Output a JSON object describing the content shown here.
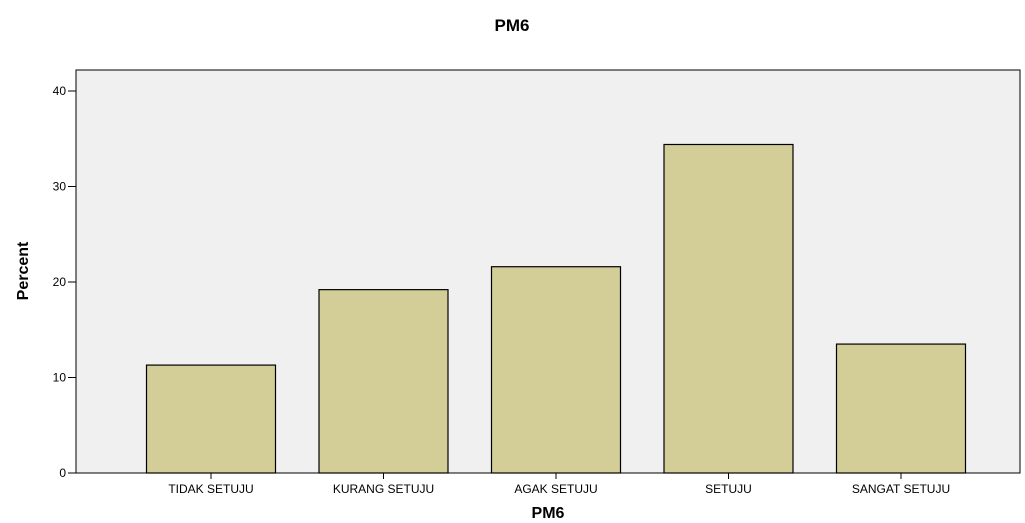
{
  "chart_data": {
    "type": "bar",
    "title": "PM6",
    "xlabel": "PM6",
    "ylabel": "Percent",
    "categories": [
      "TIDAK SETUJU",
      "KURANG SETUJU",
      "AGAK SETUJU",
      "SETUJU",
      "SANGAT SETUJU"
    ],
    "values": [
      11.3,
      19.2,
      21.6,
      34.4,
      13.5
    ],
    "ylim": [
      0,
      42.2
    ],
    "yticks": [
      "0",
      "10",
      "20",
      "30",
      "40"
    ],
    "grid": false,
    "legend": "none"
  },
  "colors": {
    "plot_background": "#f0f0f0",
    "bar_fill": "#d3ce97",
    "bar_stroke": "#000000"
  }
}
